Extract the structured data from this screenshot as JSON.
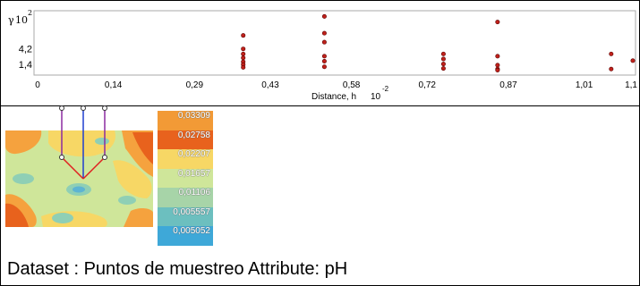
{
  "chart_data": {
    "type": "scatter",
    "title": "",
    "xlabel": "Distance, h",
    "xlabel_exponent": "10",
    "xlabel_exponent_power": "-2",
    "ylabel": "γ",
    "ylabel_exponent": "10",
    "ylabel_exponent_power": "2",
    "x_ticks": [
      "0",
      "0,14",
      "0,29",
      "0,43",
      "0,58",
      "0,72",
      "0,87",
      "1,01",
      "1,1"
    ],
    "x_tick_values": [
      0,
      0.14,
      0.29,
      0.43,
      0.58,
      0.72,
      0.87,
      1.01,
      1.1
    ],
    "y_ticks": [
      "4,2",
      "1,4"
    ],
    "y_tick_values": [
      4.2,
      1.4
    ],
    "xlim": [
      0,
      1.1
    ],
    "ylim": [
      0,
      10.7
    ],
    "grid": false,
    "series": [
      {
        "color": "#c0211b",
        "points": [
          [
            0.38,
            6.6
          ],
          [
            0.38,
            4.2
          ],
          [
            0.38,
            3.3
          ],
          [
            0.38,
            2.6
          ],
          [
            0.38,
            1.9
          ],
          [
            0.38,
            1.4
          ],
          [
            0.38,
            0.9
          ],
          [
            0.53,
            10.0
          ],
          [
            0.53,
            7.0
          ],
          [
            0.53,
            5.4
          ],
          [
            0.53,
            2.9
          ],
          [
            0.53,
            2.0
          ],
          [
            0.53,
            1.0
          ],
          [
            0.75,
            3.3
          ],
          [
            0.75,
            2.4
          ],
          [
            0.75,
            1.5
          ],
          [
            0.75,
            0.7
          ],
          [
            0.85,
            9.0
          ],
          [
            0.85,
            2.9
          ],
          [
            0.85,
            1.3
          ],
          [
            0.85,
            0.6
          ],
          [
            0.85,
            0.4
          ],
          [
            1.06,
            3.3
          ],
          [
            1.06,
            0.6
          ],
          [
            1.1,
            2.1
          ]
        ]
      }
    ]
  },
  "map": {
    "colors": {
      "orange_dark": "#e8621d",
      "orange": "#f5a23e",
      "yellow": "#f7d765",
      "green_light": "#cfe69a",
      "teal": "#8fcfb5",
      "blue": "#5db4d2",
      "line_red": "#e02020",
      "line_blue": "#1f3fd0",
      "line_purple": "#8a2aa0"
    }
  },
  "legend": {
    "items": [
      {
        "label": "0,03309",
        "color": "#f29a36"
      },
      {
        "label": "0,02758",
        "color": "#e8621d"
      },
      {
        "label": "0,02207",
        "color": "#f7d765"
      },
      {
        "label": "0,01657",
        "color": "#cfe69a"
      },
      {
        "label": "0,01106",
        "color": "#a7d4a8"
      },
      {
        "label": "0,005557",
        "color": "#6cbfbf"
      },
      {
        "label": "0,005052",
        "color": "#3ea8d8"
      }
    ]
  },
  "caption": "Dataset : Puntos de muestreo Attribute: pH"
}
